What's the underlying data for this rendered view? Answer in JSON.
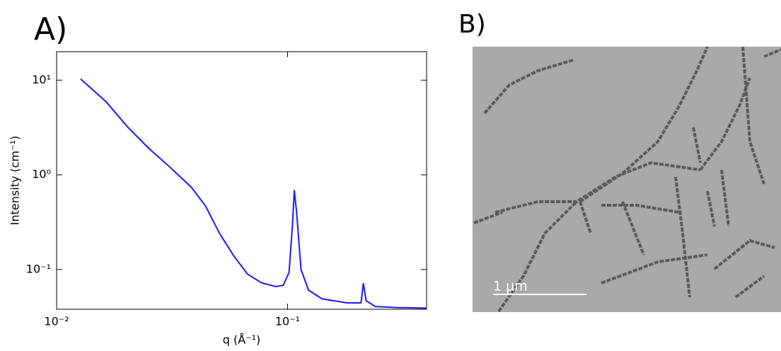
{
  "panel_labels": [
    "A)",
    "B)"
  ],
  "scale_bar": {
    "label": "1 μm"
  },
  "chart_data": {
    "type": "line",
    "xlabel": "q (Å⁻¹)",
    "ylabel": "Intensity (cm⁻¹)",
    "xscale": "log",
    "yscale": "log",
    "x": [
      0.0127,
      0.0164,
      0.0203,
      0.0251,
      0.031,
      0.0383,
      0.0441,
      0.0508,
      0.0584,
      0.0672,
      0.0774,
      0.0892,
      0.0958,
      0.1015,
      0.105,
      0.107,
      0.1094,
      0.1144,
      0.1233,
      0.141,
      0.181,
      0.208,
      0.213,
      0.219,
      0.24,
      0.297,
      0.4
    ],
    "series": [
      {
        "color": "#1a1aff",
        "values": [
          10.3,
          5.9,
          3.2,
          1.9,
          1.2,
          0.74,
          0.47,
          0.24,
          0.14,
          0.089,
          0.072,
          0.066,
          0.068,
          0.093,
          0.29,
          0.68,
          0.41,
          0.1,
          0.0605,
          0.049,
          0.0444,
          0.0444,
          0.071,
          0.0467,
          0.0406,
          0.0396,
          0.039
        ]
      }
    ],
    "xlim": [
      0.01,
      0.4
    ],
    "ylim": [
      0.038,
      20
    ],
    "xticks": [
      {
        "value": 0.01,
        "label": "10⁻²"
      },
      {
        "value": 0.1,
        "label": "10⁻¹"
      }
    ],
    "yticks": [
      {
        "value": 0.1,
        "label": "10⁻¹"
      },
      {
        "value": 1,
        "label": "10⁰"
      },
      {
        "value": 10,
        "label": "10¹"
      }
    ]
  }
}
